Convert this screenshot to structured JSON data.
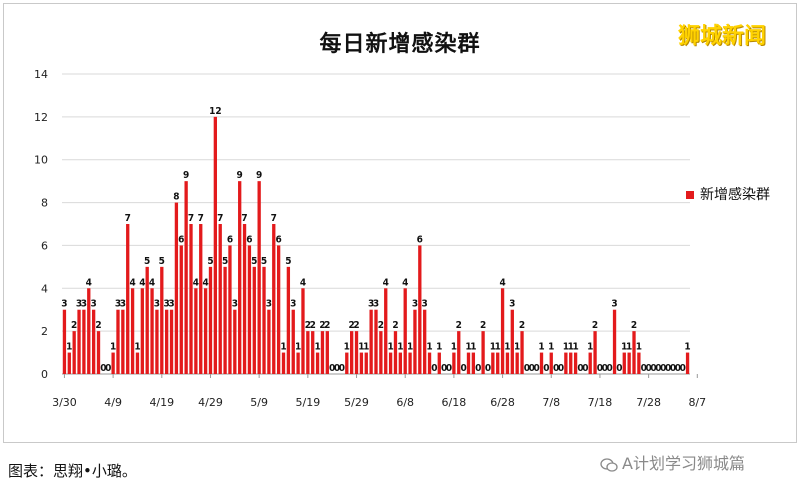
{
  "brand": "狮城新闻",
  "footer": "图表：思翔•小璐。",
  "watermark": "A计划学习狮城篇",
  "colors": {
    "bar": "#e31a1c",
    "brand": "#ffd200"
  },
  "chart_data": {
    "type": "bar",
    "title": "每日新增感染群",
    "legend": "新增感染群",
    "legend_position": "right",
    "grid": "horizontal",
    "ylim": [
      0,
      14
    ],
    "yticks": [
      0,
      2,
      4,
      6,
      8,
      10,
      12,
      14
    ],
    "x_start": "3/30",
    "xticks": [
      "3/30",
      "4/9",
      "4/19",
      "4/29",
      "5/9",
      "5/19",
      "5/29",
      "6/8",
      "6/18",
      "6/28",
      "7/8",
      "7/18",
      "7/28",
      "8/7"
    ],
    "values": [
      3,
      1,
      2,
      3,
      3,
      4,
      3,
      2,
      0,
      0,
      1,
      3,
      3,
      7,
      4,
      1,
      4,
      5,
      4,
      3,
      5,
      3,
      3,
      8,
      6,
      9,
      7,
      4,
      7,
      4,
      5,
      12,
      7,
      5,
      6,
      3,
      9,
      7,
      6,
      5,
      9,
      5,
      3,
      7,
      6,
      1,
      5,
      3,
      1,
      4,
      2,
      2,
      1,
      2,
      2,
      0,
      0,
      0,
      1,
      2,
      2,
      1,
      1,
      3,
      3,
      2,
      4,
      1,
      2,
      1,
      4,
      1,
      3,
      6,
      3,
      1,
      0,
      1,
      0,
      0,
      1,
      2,
      0,
      1,
      1,
      0,
      2,
      0,
      1,
      1,
      4,
      1,
      3,
      1,
      2,
      0,
      0,
      0,
      1,
      0,
      1,
      0,
      0,
      1,
      1,
      1,
      0,
      0,
      1,
      2,
      0,
      0,
      0,
      3,
      0,
      1,
      1,
      2,
      1,
      0,
      0,
      0,
      0,
      0,
      0,
      0,
      0,
      0,
      1
    ]
  }
}
